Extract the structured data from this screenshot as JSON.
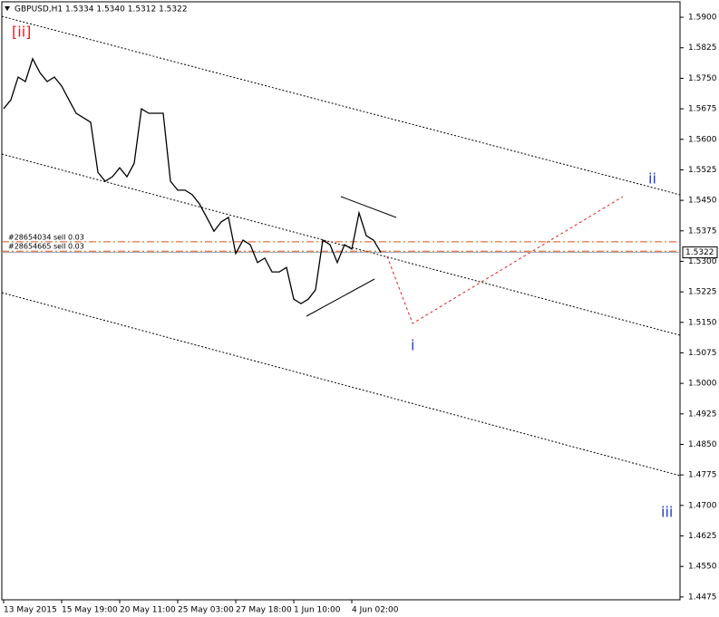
{
  "chart_data": {
    "type": "line",
    "title": "GBPUSD,H1  1.5334 1.5340 1.5312 1.5322",
    "categories": [
      "13 May 2015",
      null,
      null,
      null,
      null,
      null,
      null,
      null,
      "15 May 19:00",
      null,
      null,
      null,
      null,
      null,
      null,
      null,
      "20 May 11:00",
      null,
      null,
      null,
      null,
      null,
      null,
      null,
      "25 May 03:00",
      null,
      null,
      null,
      null,
      null,
      null,
      null,
      "27 May 18:00",
      null,
      null,
      null,
      null,
      null,
      null,
      null,
      "1 Jun 10:00",
      null,
      null,
      null,
      null,
      null,
      null,
      null,
      "4 Jun 02:00",
      null,
      null,
      null,
      null
    ],
    "series": [
      {
        "name": "GBPUSD",
        "color": "#000000",
        "values": [
          1.5675,
          1.5697,
          1.5753,
          1.5742,
          1.5798,
          1.5764,
          1.5742,
          1.5753,
          1.5731,
          1.5697,
          1.5664,
          1.5653,
          1.5642,
          1.5519,
          1.5497,
          1.5508,
          1.553,
          1.5508,
          1.5541,
          1.5675,
          1.5664,
          1.5664,
          1.5664,
          1.5497,
          1.5475,
          1.5475,
          1.5464,
          1.5441,
          1.5408,
          1.5374,
          1.5397,
          1.5408,
          1.5319,
          1.5352,
          1.5341,
          1.5297,
          1.5308,
          1.5274,
          1.5274,
          1.5285,
          1.5207,
          1.5196,
          1.5207,
          1.523,
          1.5352,
          1.5341,
          1.5297,
          1.5341,
          1.533,
          1.5419,
          1.5363,
          1.5352,
          1.5322
        ]
      }
    ],
    "ylim": [
      1.4468,
      1.5938
    ],
    "yticks": [
      {
        "value": 1.59,
        "label": "1.5900"
      },
      1.5825,
      {
        "value": 1.575,
        "label": "1.5750"
      },
      1.5675,
      {
        "value": 1.56,
        "label": "1.5600"
      },
      1.5525,
      {
        "value": 1.545,
        "label": "1.5450"
      },
      1.5375,
      {
        "value": 1.53,
        "label": "1.5300"
      },
      1.5225,
      {
        "value": 1.515,
        "label": "1.5150"
      },
      1.5075,
      {
        "value": 1.5,
        "label": "1.5000"
      },
      1.4925,
      {
        "value": 1.485,
        "label": "1.4850"
      },
      1.4775,
      {
        "value": 1.47,
        "label": "1.4700"
      },
      1.4625,
      {
        "value": 1.455,
        "label": "1.4550"
      },
      1.4475
    ],
    "last_price": 1.5322,
    "orders": [
      {
        "label": "#28654034 sell 0.03",
        "price": 1.5348,
        "color": "#e0501c"
      },
      {
        "label": "#28654665 sell 0.03",
        "price": 1.5325,
        "color": "#e0501c"
      }
    ],
    "wave_labels": [
      "[ii]",
      "ii",
      "i",
      "iii"
    ]
  }
}
